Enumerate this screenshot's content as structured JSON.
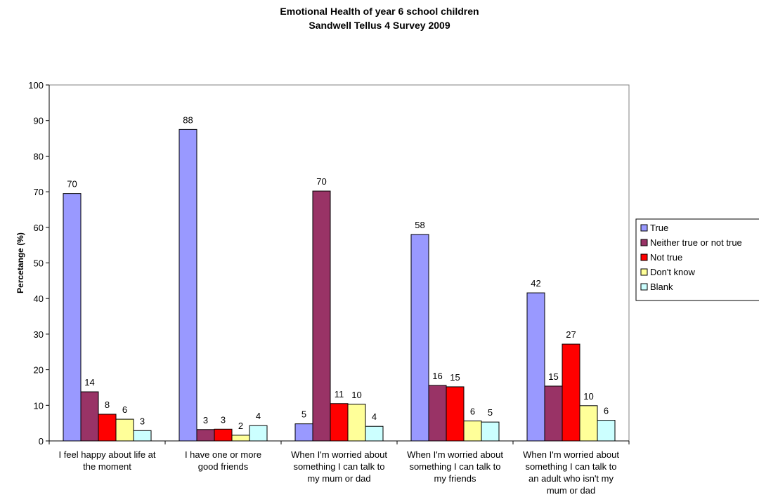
{
  "chart_data": {
    "type": "bar",
    "title_lines": [
      "Emotional Health of year 6 school children",
      "Sandwell Tellus 4 Survey 2009"
    ],
    "ylabel": "Percetange (%)",
    "ylim": [
      0,
      100
    ],
    "yticks": [
      0,
      10,
      20,
      30,
      40,
      50,
      60,
      70,
      80,
      90,
      100
    ],
    "grid": false,
    "legend_position": "right",
    "categories": [
      [
        "I feel happy about life at",
        "the moment"
      ],
      [
        "I have one or more",
        "good friends"
      ],
      [
        "When I'm worried about",
        "something I can talk to",
        "my mum or dad"
      ],
      [
        "When I'm worried about",
        "something I can talk to",
        "my friends"
      ],
      [
        "When I'm worried about",
        "something I can talk to",
        "an adult who isn't my",
        "mum or dad"
      ]
    ],
    "series": [
      {
        "name": "True",
        "color": "#9999ff",
        "values": [
          69.5,
          87.5,
          4.8,
          58,
          41.6
        ],
        "labels": [
          "70",
          "88",
          "5",
          "58",
          "42"
        ]
      },
      {
        "name": "Neither true or not true",
        "color": "#993366",
        "values": [
          13.8,
          3.2,
          70.2,
          15.6,
          15.4
        ],
        "labels": [
          "14",
          "3",
          "70",
          "16",
          "15"
        ]
      },
      {
        "name": "Not true",
        "color": "#ff0000",
        "values": [
          7.5,
          3.3,
          10.5,
          15.2,
          27.2
        ],
        "labels": [
          "8",
          "3",
          "11",
          "15",
          "27"
        ]
      },
      {
        "name": "Don't know",
        "color": "#ffff99",
        "values": [
          6.1,
          1.6,
          10.3,
          5.6,
          9.9
        ],
        "labels": [
          "6",
          "2",
          "10",
          "6",
          "10"
        ]
      },
      {
        "name": "Blank",
        "color": "#ccffff",
        "values": [
          2.9,
          4.3,
          4.1,
          5.3,
          5.8
        ],
        "labels": [
          "3",
          "4",
          "4",
          "5",
          "6"
        ]
      }
    ]
  }
}
